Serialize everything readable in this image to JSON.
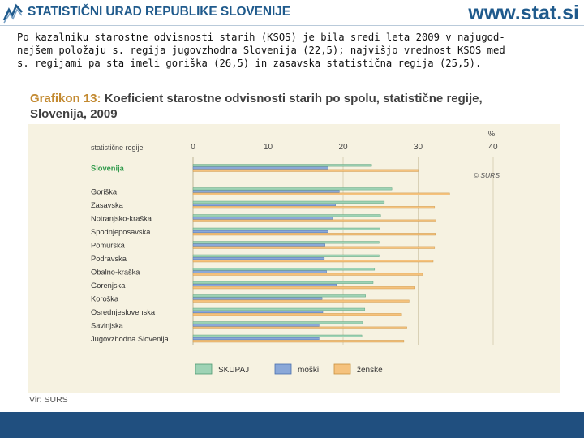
{
  "header": {
    "org_name": "STATISTIČNI URAD REPUBLIKE SLOVENIJE",
    "site": "www.stat.si"
  },
  "intro": {
    "lines": [
      "Po kazalniku starostne odvisnosti starih (KSOS) je bila sredi leta 2009 v najugod-",
      "nejšem položaju s. regija jugovzhodna Slovenija (22,5); najvišjo vrednost KSOS med",
      "s. regijami pa sta imeli goriška (26,5) in zasavska statistična regija (25,5)."
    ]
  },
  "chart_title": {
    "prefix": "Grafikon 13:",
    "line1": "Koeficient starostne odvisnosti starih po spolu, statistične regije,",
    "line2": "Slovenija, 2009"
  },
  "source": "Vir: SURS",
  "colors": {
    "skupaj": "#9ed3b5",
    "moski": "#8aa8d8",
    "zenske": "#f5c27d",
    "highlight": "#2f9a4a",
    "accent": "#c38a31",
    "brand": "#1f5a8c",
    "footer": "#204f7f"
  },
  "chart_data": {
    "type": "bar",
    "orientation": "horizontal",
    "row_header": "statistične regije",
    "unit": "%",
    "x_ticks": [
      0,
      10,
      20,
      30,
      40
    ],
    "xlim": [
      0,
      40
    ],
    "note": "© SURS",
    "legend_position": "bottom",
    "categories": [
      "Slovenija",
      "Goriška",
      "Zasavska",
      "Notranjsko-kraška",
      "Spodnjeposavska",
      "Pomurska",
      "Podravska",
      "Obalno-kraška",
      "Gorenjska",
      "Koroška",
      "Osrednjeslovenska",
      "Savinjska",
      "Jugovzhodna Slovenija"
    ],
    "highlight_category": "Slovenija",
    "series": [
      {
        "name": "SKUPAJ",
        "values": [
          23.8,
          26.5,
          25.5,
          25.0,
          24.9,
          24.8,
          24.8,
          24.2,
          24.0,
          23.0,
          22.9,
          22.6,
          22.5
        ]
      },
      {
        "name": "moški",
        "values": [
          18.0,
          19.5,
          19.0,
          18.6,
          18.0,
          17.6,
          17.5,
          17.8,
          19.1,
          17.2,
          17.3,
          16.8,
          16.8
        ]
      },
      {
        "name": "ženske",
        "values": [
          30.0,
          34.2,
          32.2,
          32.4,
          32.3,
          32.2,
          32.0,
          30.6,
          29.6,
          28.8,
          27.8,
          28.5,
          28.1
        ]
      }
    ]
  }
}
